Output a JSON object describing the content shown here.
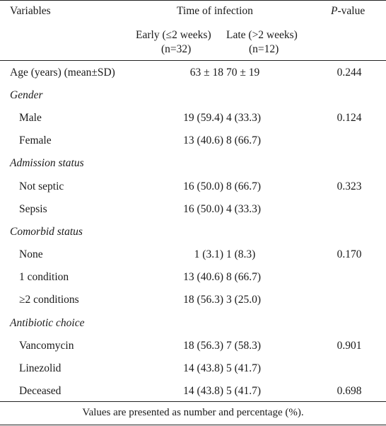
{
  "header": {
    "variables": "Variables",
    "time_of_infection": "Time of infection",
    "p_value_p": "P",
    "p_value_rest": "-value",
    "early_label": "Early (≤2 weeks)",
    "early_n": "(n=32)",
    "late_label": "Late (>2 weeks)",
    "late_n": "(n=12)"
  },
  "rows": [
    {
      "label": "Age (years) (mean±SD)",
      "early": "63 ± 18",
      "late": "70 ± 19",
      "p": "0.244"
    },
    {
      "section": "Gender"
    },
    {
      "label": "Male",
      "early": "19 (59.4)",
      "late": "4 (33.3)",
      "p": "0.124"
    },
    {
      "label": "Female",
      "early": "13 (40.6)",
      "late": "8 (66.7)",
      "p": ""
    },
    {
      "section": "Admission status"
    },
    {
      "label": "Not septic",
      "early": "16 (50.0)",
      "late": "8 (66.7)",
      "p": "0.323"
    },
    {
      "label": "Sepsis",
      "early": "16 (50.0)",
      "late": "4 (33.3)",
      "p": ""
    },
    {
      "section": "Comorbid status"
    },
    {
      "label": "None",
      "early": "1 (3.1)",
      "late": "1 (8.3)",
      "p": "0.170"
    },
    {
      "label": "1 condition",
      "early": "13 (40.6)",
      "late": "8 (66.7)",
      "p": ""
    },
    {
      "label": "≥2 conditions",
      "early": "18 (56.3)",
      "late": "3 (25.0)",
      "p": ""
    },
    {
      "section": "Antibiotic choice"
    },
    {
      "label": "Vancomycin",
      "early": "18 (56.3)",
      "late": "7 (58.3)",
      "p": "0.901"
    },
    {
      "label": "Linezolid",
      "early": "14 (43.8)",
      "late": "5 (41.7)",
      "p": ""
    },
    {
      "label": "Deceased",
      "early": "14 (43.8)",
      "late": "5 (41.7)",
      "p": "0.698"
    }
  ],
  "footnote": "Values are presented as number and percentage (%)."
}
